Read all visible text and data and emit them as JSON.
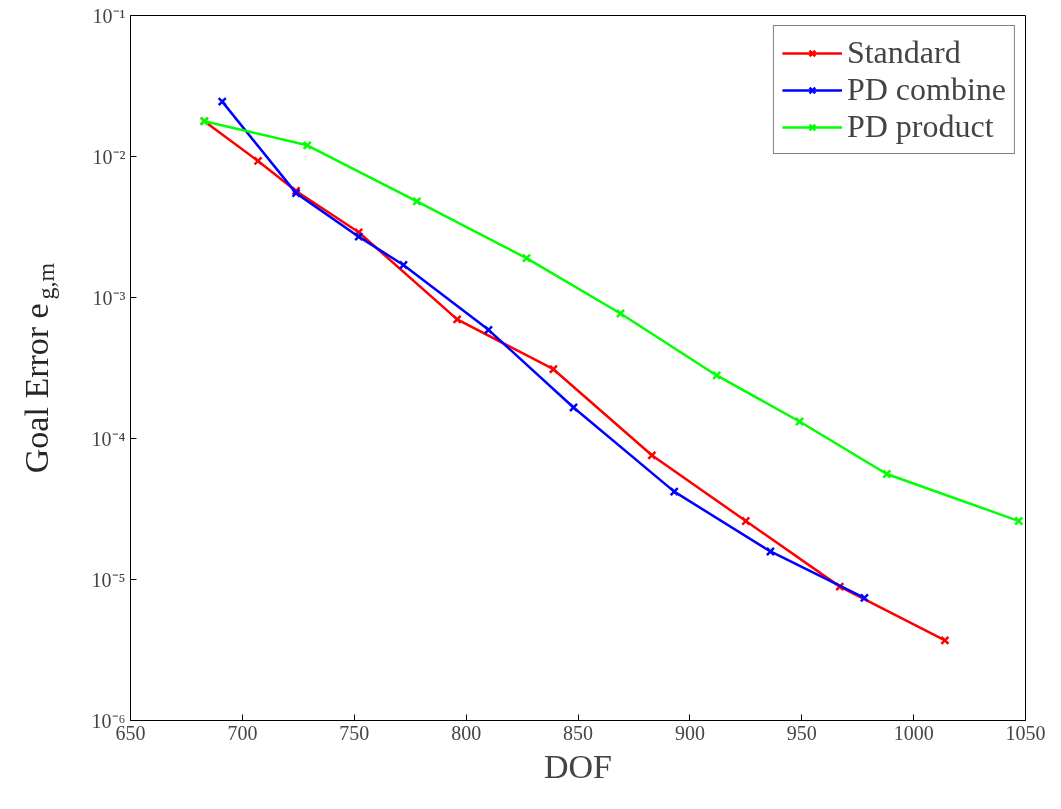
{
  "chart_data": {
    "type": "line",
    "xlabel": "DOF",
    "ylabel": "Goal Error e$_{g,m}$",
    "log": "y",
    "grid": false,
    "legend": "top right",
    "marker": "cross",
    "line_style": "solid",
    "xlim": [
      650,
      1050
    ],
    "xticks": [
      650,
      700,
      750,
      800,
      850,
      900,
      950,
      1000,
      1050
    ],
    "ylim": [
      1e-06,
      0.1
    ],
    "yticks": [
      {
        "value": 1e-06,
        "label": "10⁻⁶"
      },
      {
        "value": 1e-05,
        "label": "10⁻⁵"
      },
      {
        "value": 0.0001,
        "label": "10⁻⁴"
      },
      {
        "value": 0.001,
        "label": "10⁻³"
      },
      {
        "value": 0.01,
        "label": "10⁻²"
      },
      {
        "value": 0.1,
        "label": "10⁻¹"
      }
    ],
    "series": [
      {
        "name": "Standard",
        "color": "#ff0000",
        "x": [
          683,
          707,
          724,
          752,
          796,
          839,
          883,
          925,
          967,
          1014
        ],
        "values": [
          0.0178,
          0.0093,
          0.0057,
          0.0029,
          0.0007,
          0.00031,
          7.6e-05,
          2.6e-05,
          8.9e-06,
          3.7e-06
        ]
      },
      {
        "name": "PD combine",
        "color": "#0000ff",
        "x": [
          691,
          724,
          752,
          772,
          810,
          848,
          893,
          936,
          978
        ],
        "values": [
          0.0245,
          0.0055,
          0.0027,
          0.0017,
          0.00059,
          0.000166,
          4.2e-05,
          1.58e-05,
          7.4e-06
        ]
      },
      {
        "name": "PD product",
        "color": "#00ff00",
        "x": [
          683,
          729,
          778,
          827,
          869,
          912,
          949,
          988,
          1047
        ],
        "values": [
          0.0178,
          0.012,
          0.0048,
          0.0019,
          0.00077,
          0.00028,
          0.000132,
          5.6e-05,
          2.6e-05
        ]
      }
    ]
  }
}
